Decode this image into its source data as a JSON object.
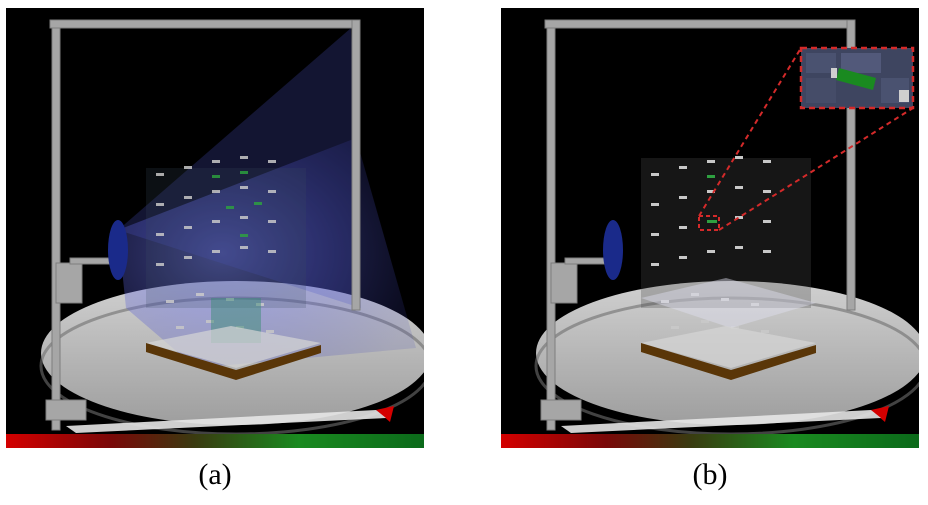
{
  "figure": {
    "panels": [
      {
        "id": "a",
        "caption": "(a)",
        "view": "ray-volume-overlay"
      },
      {
        "id": "b",
        "caption": "(b)",
        "view": "zoomed-inset"
      }
    ],
    "colorbar": {
      "colors": [
        "#d40000",
        "#5a1a0a",
        "#2a4a10",
        "#1a8a20",
        "#0b6a1a"
      ]
    },
    "colors": {
      "background": "#000000",
      "turntable": "#b9b9b9",
      "frame": "#a6a6a6",
      "camera": "#1a2a8a",
      "base": "#5a3608",
      "ray_volume": "#5b63d9",
      "inset_border": "#d42a2a"
    }
  }
}
